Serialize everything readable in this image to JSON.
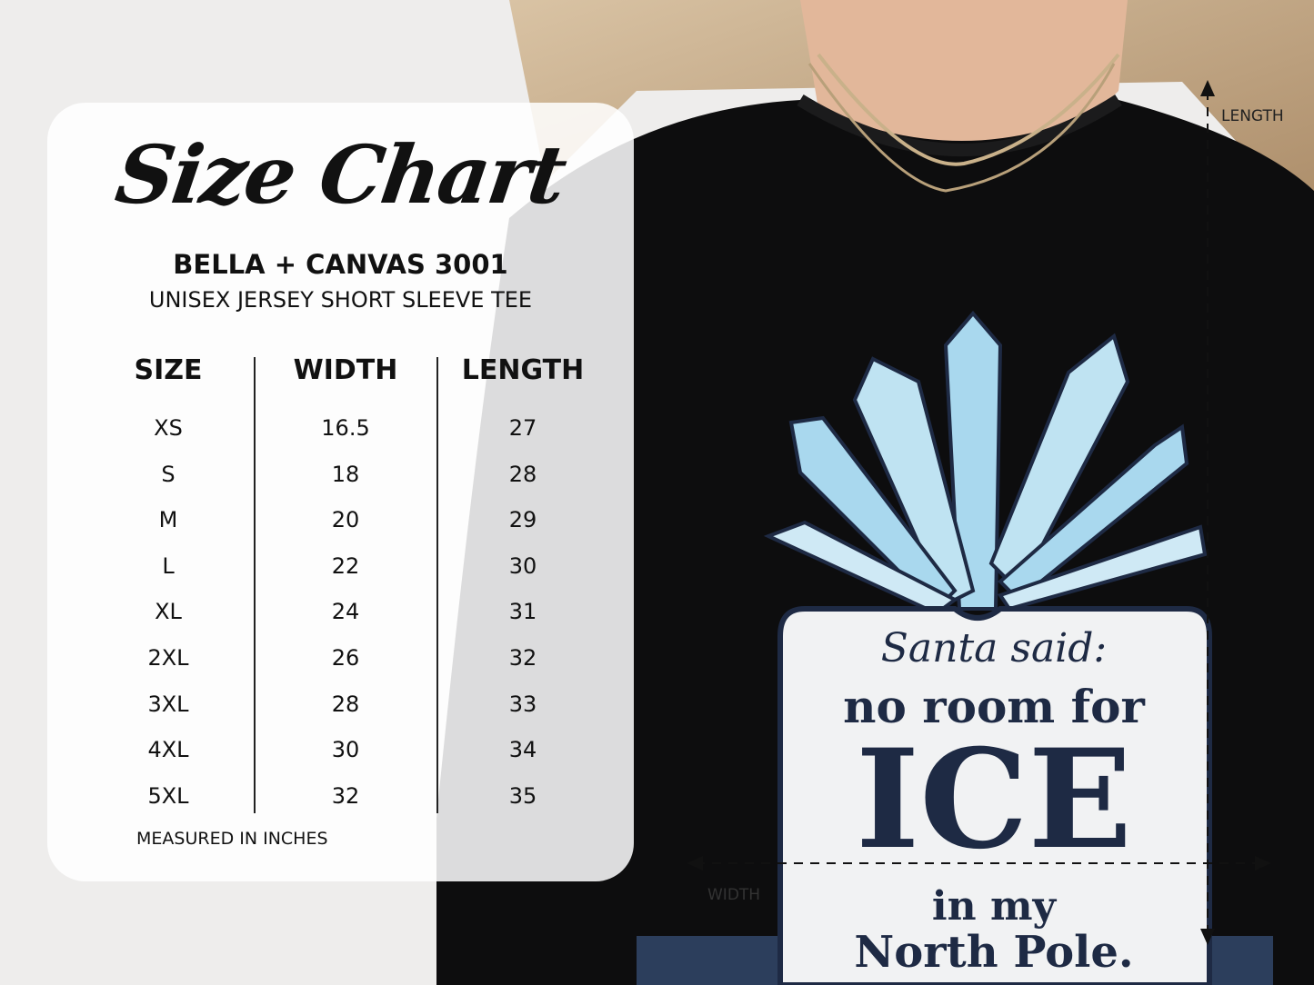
{
  "card": {
    "title": "Size Chart",
    "brand": "BELLA + CANVAS 3001",
    "subtitle": "UNISEX JERSEY SHORT SLEEVE TEE",
    "columns": [
      "SIZE",
      "WIDTH",
      "LENGTH"
    ],
    "rows": [
      [
        "XS",
        "16.5",
        "27"
      ],
      [
        "S",
        "18",
        "28"
      ],
      [
        "M",
        "20",
        "29"
      ],
      [
        "L",
        "22",
        "30"
      ],
      [
        "XL",
        "24",
        "31"
      ],
      [
        "2XL",
        "26",
        "32"
      ],
      [
        "3XL",
        "28",
        "33"
      ],
      [
        "4XL",
        "30",
        "34"
      ],
      [
        "5XL",
        "32",
        "35"
      ]
    ],
    "footnote": "MEASURED IN INCHES"
  },
  "measure_labels": {
    "length": "LENGTH",
    "width": "WIDTH"
  },
  "shirt_design": {
    "line1": "Santa said:",
    "line2": "no room for",
    "line3": "ICE",
    "line4": "in my",
    "line5": "North Pole."
  },
  "colors": {
    "shirt": "#0d0d0e",
    "ink": "#1e2a44",
    "crystal": "#a9d8ee"
  }
}
